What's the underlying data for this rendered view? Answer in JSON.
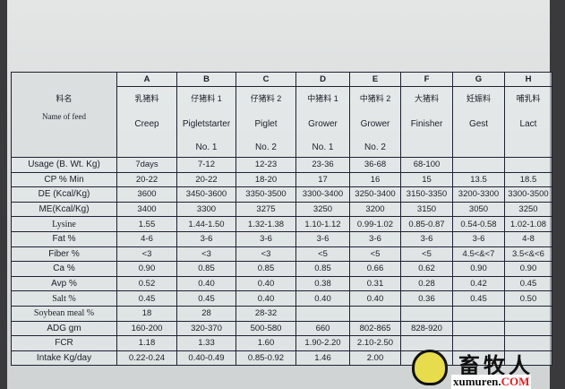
{
  "header_label": {
    "cn": "料名",
    "en": "Name of feed"
  },
  "columns": [
    {
      "letter": "A",
      "cn": "乳猪料",
      "en": "Creep",
      "no": ""
    },
    {
      "letter": "B",
      "cn": "仔猪料 1",
      "en": "Pigletstarter",
      "no": "No. 1"
    },
    {
      "letter": "C",
      "cn": "仔猪料 2",
      "en": "Piglet",
      "no": "No. 2"
    },
    {
      "letter": "D",
      "cn": "中猪料 1",
      "en": "Grower",
      "no": "No. 1"
    },
    {
      "letter": "E",
      "cn": "中猪料 2",
      "en": "Grower",
      "no": "No. 2"
    },
    {
      "letter": "F",
      "cn": "大猪料",
      "en": "Finisher",
      "no": ""
    },
    {
      "letter": "G",
      "cn": "妊娠料",
      "en": "Gest",
      "no": ""
    },
    {
      "letter": "H",
      "cn": "哺乳料",
      "en": "Lact",
      "no": ""
    }
  ],
  "rows": [
    {
      "label": "Usage (B. Wt. Kg)",
      "values": [
        "7days",
        "7-12",
        "12-23",
        "23-36",
        "36-68",
        "68-100",
        "",
        ""
      ]
    },
    {
      "label": "CP % Min",
      "values": [
        "20-22",
        "20-22",
        "18-20",
        "17",
        "16",
        "15",
        "13.5",
        "18.5"
      ]
    },
    {
      "label": "DE (Kcal/Kg)",
      "values": [
        "3600",
        "3450-3600",
        "3350-3500",
        "3300-3400",
        "3250-3400",
        "3150-3350",
        "3200-3300",
        "3300-3500"
      ]
    },
    {
      "label": "ME(Kcal/Kg)",
      "values": [
        "3400",
        "3300",
        "3275",
        "3250",
        "3200",
        "3150",
        "3050",
        "3250"
      ]
    },
    {
      "label": "Lysine",
      "values": [
        "1.55",
        "1.44-1.50",
        "1.32-1.38",
        "1.10-1.12",
        "0.99-1.02",
        "0.85-0.87",
        "0.54-0.58",
        "1.02-1.08"
      ]
    },
    {
      "label": "Fat %",
      "values": [
        "4-6",
        "3-6",
        "3-6",
        "3-6",
        "3-6",
        "3-6",
        "3-6",
        "4-8"
      ]
    },
    {
      "label": "Fiber %",
      "values": [
        "<3",
        "<3",
        "<3",
        "<5",
        "<5",
        "<5",
        "4.5<&<7",
        "3.5<&<6"
      ]
    },
    {
      "label": "Ca %",
      "values": [
        "0.90",
        "0.85",
        "0.85",
        "0.85",
        "0.66",
        "0.62",
        "0.90",
        "0.90"
      ]
    },
    {
      "label": "Avp %",
      "values": [
        "0.52",
        "0.40",
        "0.40",
        "0.38",
        "0.31",
        "0.28",
        "0.42",
        "0.45"
      ]
    },
    {
      "label": "Salt %",
      "values": [
        "0.45",
        "0.45",
        "0.40",
        "0.40",
        "0.40",
        "0.36",
        "0.45",
        "0.50"
      ]
    },
    {
      "label": "Soybean meal %",
      "values": [
        "18",
        "28",
        "28-32",
        "",
        "",
        "",
        "",
        ""
      ]
    },
    {
      "label": "ADG gm",
      "values": [
        "160-200",
        "320-370",
        "500-580",
        "660",
        "802-865",
        "828-920",
        "",
        ""
      ]
    },
    {
      "label": "FCR",
      "values": [
        "1.18",
        "1.33",
        "1.60",
        "1.90-2.20",
        "2.10-2.50",
        "",
        "",
        ""
      ]
    },
    {
      "label": "Intake Kg/day",
      "values": [
        "0.22-0.24",
        "0.40-0.49",
        "0.85-0.92",
        "1.46",
        "2.00",
        "",
        "",
        ""
      ]
    }
  ],
  "watermark": {
    "cn": "畜牧人",
    "en": "xumuren.",
    "tld": "COM"
  }
}
